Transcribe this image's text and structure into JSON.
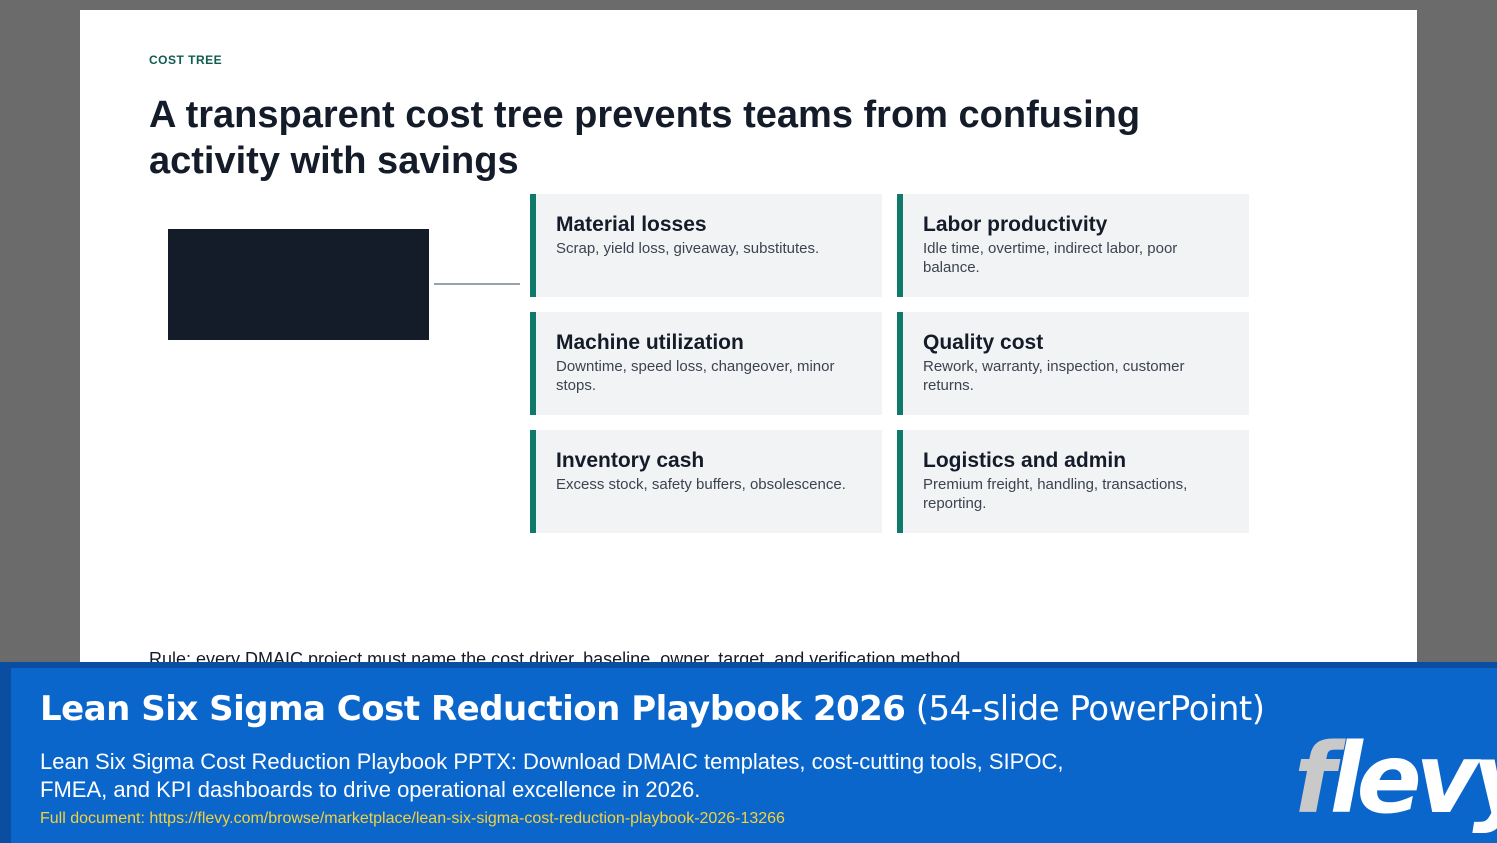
{
  "slide": {
    "eyebrow": "COST TREE",
    "title": "A transparent cost tree prevents teams from confusing activity with savings",
    "cards": [
      {
        "title": "Material losses",
        "desc": "Scrap, yield loss, giveaway, substitutes."
      },
      {
        "title": "Labor productivity",
        "desc": "Idle time, overtime, indirect labor, poor balance."
      },
      {
        "title": "Machine utilization",
        "desc": "Downtime, speed loss, changeover, minor stops."
      },
      {
        "title": "Quality cost",
        "desc": "Rework, warranty, inspection, customer returns."
      },
      {
        "title": "Inventory cash",
        "desc": "Excess stock, safety buffers, obsolescence."
      },
      {
        "title": "Logistics and admin",
        "desc": "Premium freight, handling, transactions, reporting."
      }
    ],
    "rule": "Rule: every DMAIC project must name the cost driver, baseline, owner, target, and verification method."
  },
  "banner": {
    "title": "Lean Six Sigma Cost Reduction Playbook 2026",
    "subtitle": "(54-slide PowerPoint)",
    "description": "Lean Six Sigma Cost Reduction Playbook PPTX: Download DMAIC templates, cost-cutting tools, SIPOC, FMEA, and KPI dashboards to drive operational excellence in 2026.",
    "link": "Full document: https://flevy.com/browse/marketplace/lean-six-sigma-cost-reduction-playbook-2026-13266",
    "logo": "flevy"
  },
  "colors": {
    "accent": "#0f7a6a",
    "navy": "#141b29",
    "banner_blue": "#0b66cc",
    "link_yellow": "#f2d23c"
  }
}
